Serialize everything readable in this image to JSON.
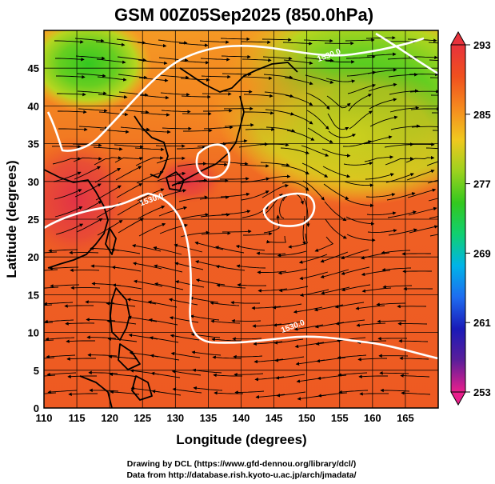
{
  "title": "GSM 00Z05Sep2025 (850.0hPa)",
  "axes": {
    "xlabel": "Longitude (degrees)",
    "ylabel": "Latitude  (degrees)",
    "xlim": [
      110,
      170
    ],
    "ylim": [
      0,
      50
    ],
    "xticks": [
      "110",
      "115",
      "120",
      "125",
      "130",
      "135",
      "140",
      "145",
      "150",
      "155",
      "160",
      "165"
    ],
    "yticks": [
      "0",
      "5",
      "10",
      "15",
      "20",
      "25",
      "30",
      "35",
      "40",
      "45"
    ]
  },
  "colorbar": {
    "labels": [
      "293",
      "285",
      "277",
      "269",
      "261",
      "253"
    ],
    "min": 253,
    "max": 293,
    "colors": [
      "#e91e8c",
      "#5b1e9a",
      "#1a1ab8",
      "#1e6cf0",
      "#00b4e8",
      "#10d070",
      "#33c81e",
      "#9cd21e",
      "#f0c81e",
      "#f58a1e",
      "#f0501e",
      "#e8323c"
    ]
  },
  "contours": {
    "label_value": "1530.0",
    "label_points": [
      {
        "lon": 126.5,
        "lat": 27.3
      },
      {
        "lon": 148.0,
        "lat": 10.5
      },
      {
        "lon": 153.5,
        "lat": 46.4
      }
    ]
  },
  "credits": {
    "line1": "Drawing by DCL (https://www.gfd-dennou.org/library/dcl/)",
    "line2": "Data from http://database.rish.kyoto-u.ac.jp/arch/jmadata/"
  }
}
